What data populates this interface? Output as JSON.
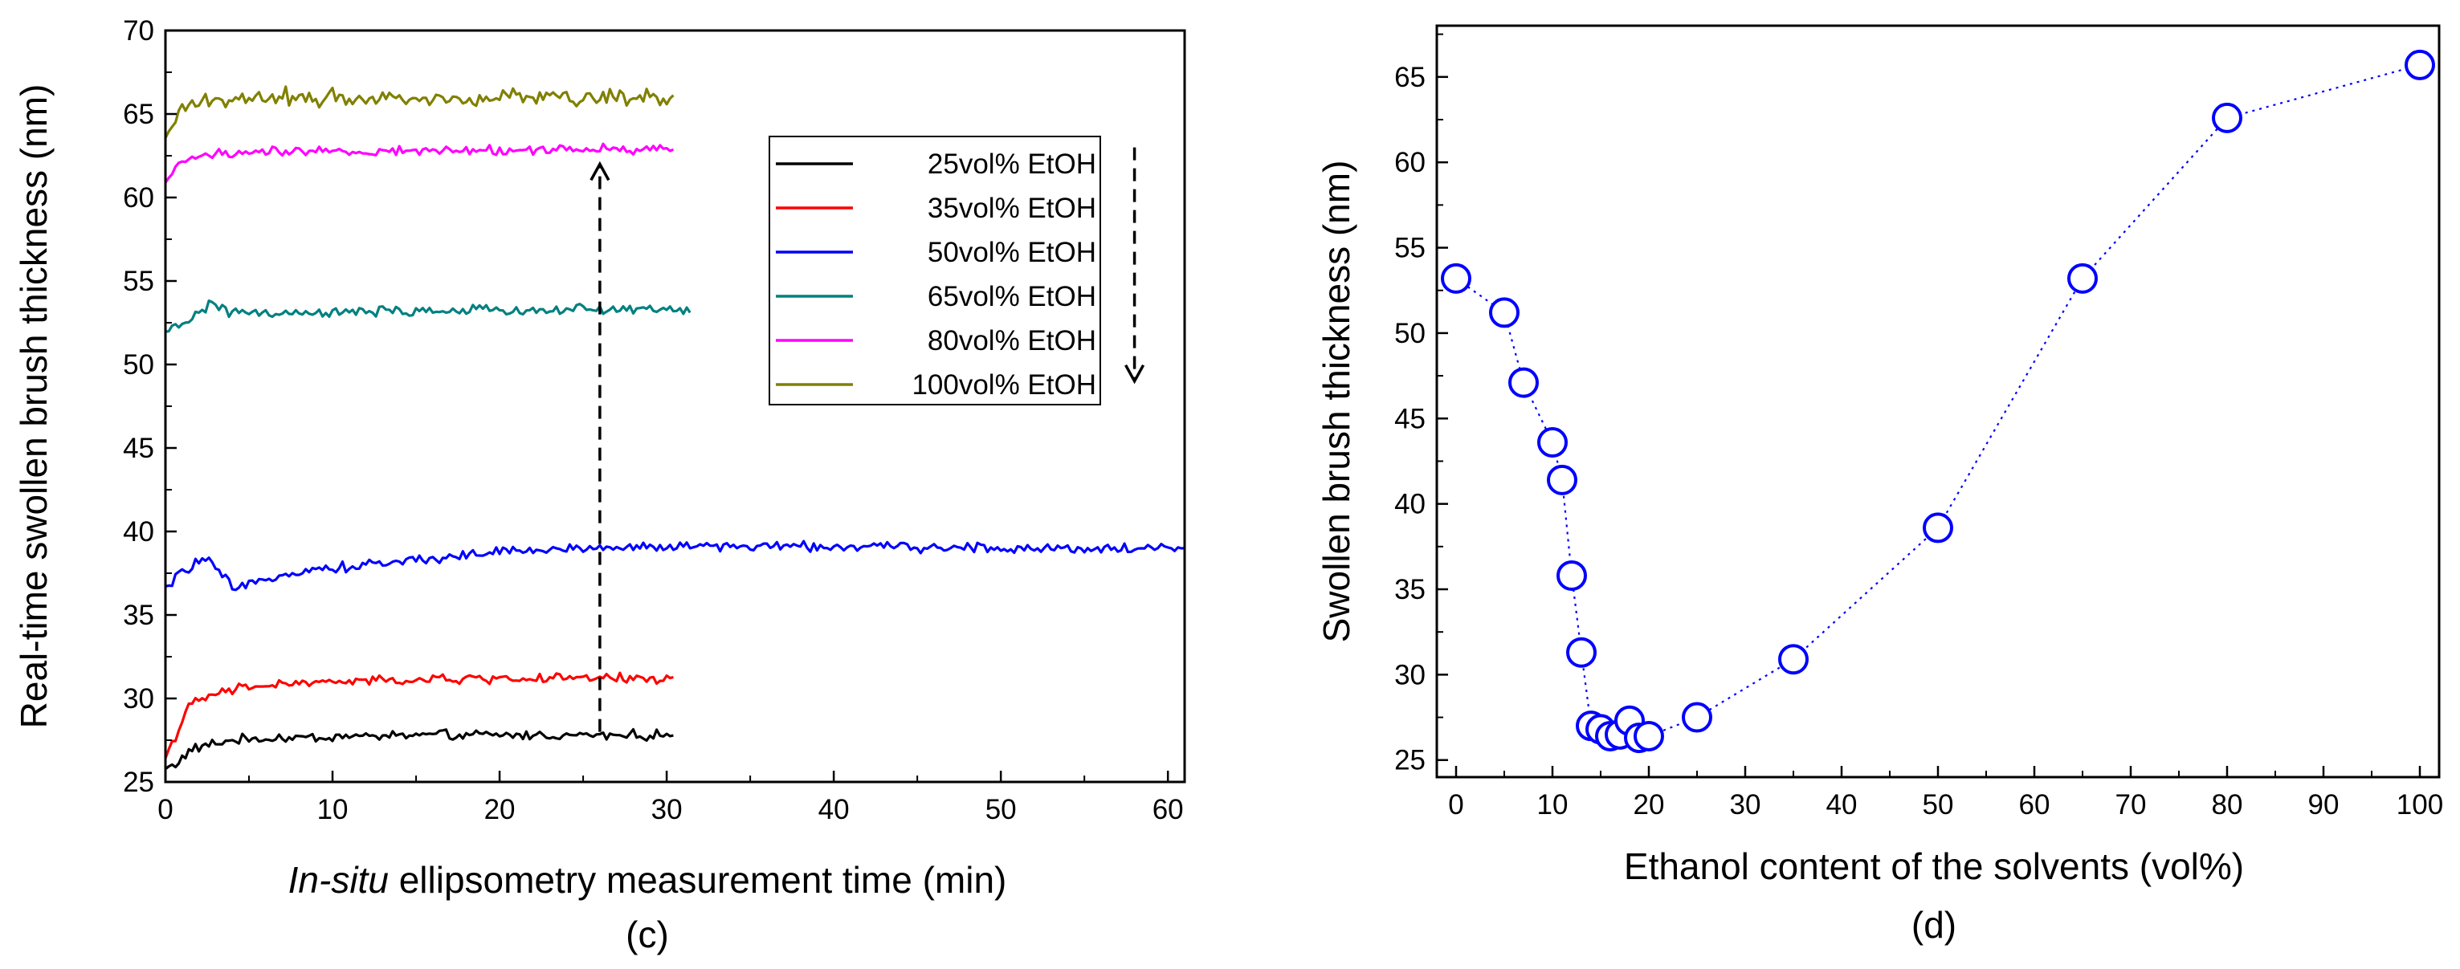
{
  "chart_data": [
    {
      "id": "c",
      "type": "line",
      "caption": "(c)",
      "ylabel": "Real-time swollen brush thickness (nm)",
      "xlabel_italic": "In-situ",
      "xlabel_rest": " ellipsometry measurement  time (min)",
      "xlim": [
        0,
        61
      ],
      "ylim": [
        25,
        70
      ],
      "x_ticks": [
        0,
        10,
        20,
        30,
        40,
        50,
        60
      ],
      "y_ticks": [
        25,
        30,
        35,
        40,
        45,
        50,
        55,
        60,
        65,
        70
      ],
      "legend_position": "top-right",
      "series": [
        {
          "name": "25vol% EtOH",
          "color": "#000000",
          "x_end": 30.5,
          "points": [
            [
              0,
              25.8
            ],
            [
              0.8,
              26.2
            ],
            [
              1.5,
              26.9
            ],
            [
              2.5,
              27.2
            ],
            [
              4,
              27.5
            ],
            [
              6,
              27.6
            ],
            [
              10,
              27.7
            ],
            [
              15,
              27.8
            ],
            [
              20,
              27.8
            ],
            [
              25,
              27.8
            ],
            [
              30.5,
              27.8
            ]
          ],
          "noise": 0.3
        },
        {
          "name": "35vol% EtOH",
          "color": "#ff0000",
          "x_end": 30.5,
          "points": [
            [
              0,
              26.5
            ],
            [
              0.8,
              28.2
            ],
            [
              1.5,
              29.6
            ],
            [
              2.5,
              30.1
            ],
            [
              4,
              30.5
            ],
            [
              6,
              30.8
            ],
            [
              10,
              31.0
            ],
            [
              15,
              31.1
            ],
            [
              20,
              31.2
            ],
            [
              25,
              31.2
            ],
            [
              30.5,
              31.2
            ]
          ],
          "noise": 0.3
        },
        {
          "name": "50vol% EtOH",
          "color": "#0000ff",
          "x_end": 61,
          "points": [
            [
              0,
              36.5
            ],
            [
              1,
              37.6
            ],
            [
              2.3,
              38.4
            ],
            [
              3.2,
              37.6
            ],
            [
              4.2,
              36.4
            ],
            [
              5.5,
              37.0
            ],
            [
              7,
              37.5
            ],
            [
              10,
              37.8
            ],
            [
              15,
              38.3
            ],
            [
              20,
              38.8
            ],
            [
              25,
              39.0
            ],
            [
              30,
              39.1
            ],
            [
              40,
              39.1
            ],
            [
              50,
              39.0
            ],
            [
              61,
              39.0
            ]
          ],
          "noise": 0.3
        },
        {
          "name": "65vol% EtOH",
          "color": "#008080",
          "x_end": 31.5,
          "points": [
            [
              0,
              51.8
            ],
            [
              0.8,
              52.4
            ],
            [
              2,
              53.0
            ],
            [
              2.7,
              53.8
            ],
            [
              3.5,
              53.2
            ],
            [
              6,
              53.0
            ],
            [
              15,
              53.2
            ],
            [
              25,
              53.3
            ],
            [
              31.5,
              53.3
            ]
          ],
          "noise": 0.3
        },
        {
          "name": "80vol% EtOH",
          "color": "#ff00ff",
          "x_end": 30.5,
          "points": [
            [
              0,
              60.8
            ],
            [
              0.6,
              61.8
            ],
            [
              1.5,
              62.4
            ],
            [
              3,
              62.6
            ],
            [
              6,
              62.7
            ],
            [
              15,
              62.8
            ],
            [
              25,
              62.9
            ],
            [
              30.5,
              62.9
            ]
          ],
          "noise": 0.3
        },
        {
          "name": "100vol% EtOH",
          "color": "#808000",
          "x_end": 30.5,
          "points": [
            [
              0,
              63.5
            ],
            [
              0.8,
              65.0
            ],
            [
              2,
              65.8
            ],
            [
              5,
              66.0
            ],
            [
              15,
              66.0
            ],
            [
              25,
              66.0
            ],
            [
              30.5,
              66.0
            ]
          ],
          "noise": 0.55
        }
      ],
      "annotations": [
        {
          "type": "dashed-arrow",
          "direction": "up",
          "x": 26,
          "y_from": 28,
          "y_to": 62
        },
        {
          "type": "dashed-arrow",
          "direction": "down",
          "x": 58,
          "y_from": 63,
          "y_to": 49
        }
      ]
    },
    {
      "id": "d",
      "type": "scatter",
      "caption": "(d)",
      "ylabel": "Swollen brush thickness (nm)",
      "xlabel": "Ethanol content of the solvents (vol%)",
      "xlim": [
        -2,
        102
      ],
      "ylim": [
        24,
        68
      ],
      "x_ticks": [
        0,
        10,
        20,
        30,
        40,
        50,
        60,
        70,
        80,
        90,
        100
      ],
      "y_ticks": [
        25,
        30,
        35,
        40,
        45,
        50,
        55,
        60,
        65
      ],
      "marker": "open-circle",
      "line_style": "dotted",
      "color": "#0000ff",
      "points": [
        [
          0,
          53.2
        ],
        [
          5,
          51.2
        ],
        [
          7,
          47.1
        ],
        [
          10,
          43.6
        ],
        [
          11,
          41.4
        ],
        [
          12,
          35.8
        ],
        [
          13,
          31.3
        ],
        [
          14,
          27.0
        ],
        [
          15,
          26.8
        ],
        [
          16,
          26.4
        ],
        [
          17,
          26.5
        ],
        [
          18,
          27.3
        ],
        [
          19,
          26.3
        ],
        [
          20,
          26.4
        ],
        [
          25,
          27.5
        ],
        [
          35,
          30.9
        ],
        [
          50,
          38.6
        ],
        [
          65,
          53.2
        ],
        [
          80,
          62.6
        ],
        [
          100,
          65.7
        ]
      ]
    }
  ]
}
